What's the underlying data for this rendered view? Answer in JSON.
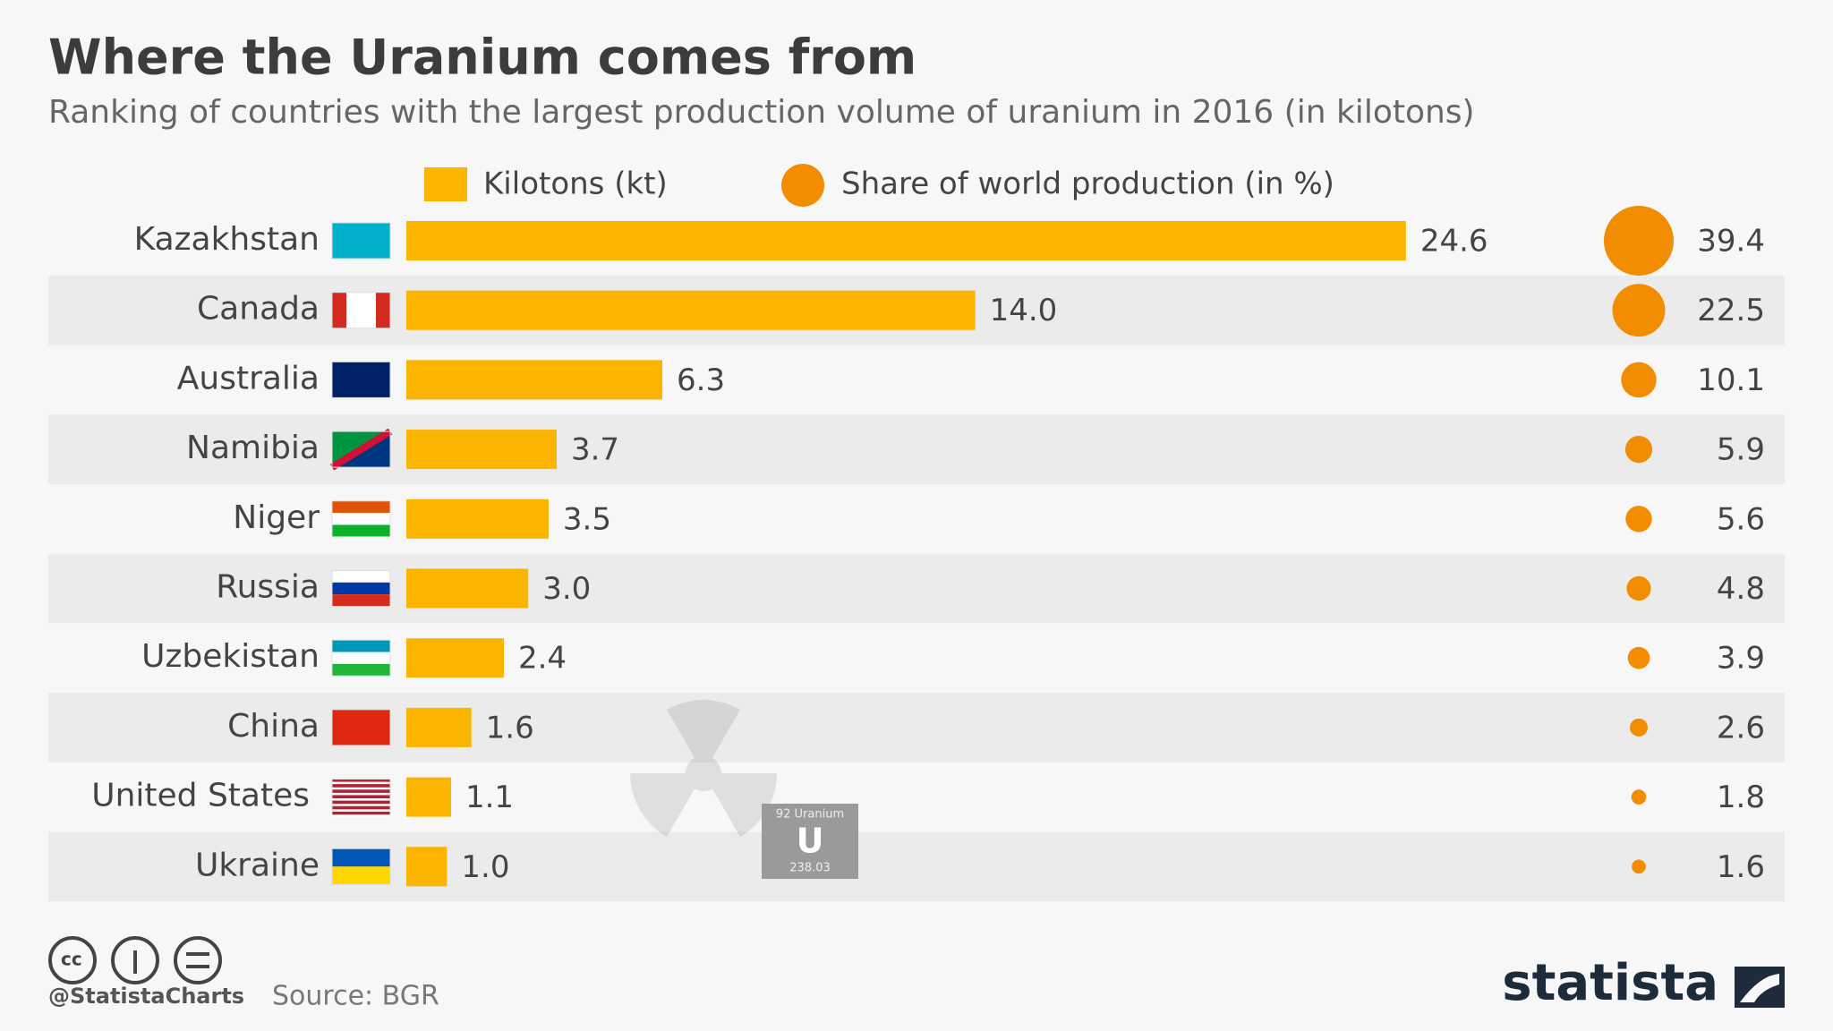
{
  "chart_data": {
    "type": "bar",
    "title": "Where the Uranium comes from",
    "subtitle": "Ranking of countries with the largest production volume of uranium in 2016 (in kilotons)",
    "categories": [
      "Kazakhstan",
      "Canada",
      "Australia",
      "Namibia",
      "Niger",
      "Russia",
      "Uzbekistan",
      "China",
      "United States",
      "Ukraine"
    ],
    "series": [
      {
        "name": "Kilotons (kt)",
        "color": "#fbb400",
        "values": [
          24.6,
          14.0,
          6.3,
          3.7,
          3.5,
          3.0,
          2.4,
          1.6,
          1.1,
          1.0
        ],
        "value_labels": [
          "24.6",
          "14.0",
          "6.3",
          "3.7",
          "3.5",
          "3.0",
          "2.4",
          "1.6",
          "1.1",
          "1.0"
        ]
      },
      {
        "name": "Share of world production (in %)",
        "color": "#f28c00",
        "values": [
          39.4,
          22.5,
          10.1,
          5.9,
          5.6,
          4.8,
          3.9,
          2.6,
          1.8,
          1.6
        ]
      }
    ],
    "annotations": [
      "92 Uranium",
      "U",
      "238.03"
    ],
    "credit": "@StatistaCharts",
    "source": "Source: BGR",
    "brand": "statista"
  }
}
